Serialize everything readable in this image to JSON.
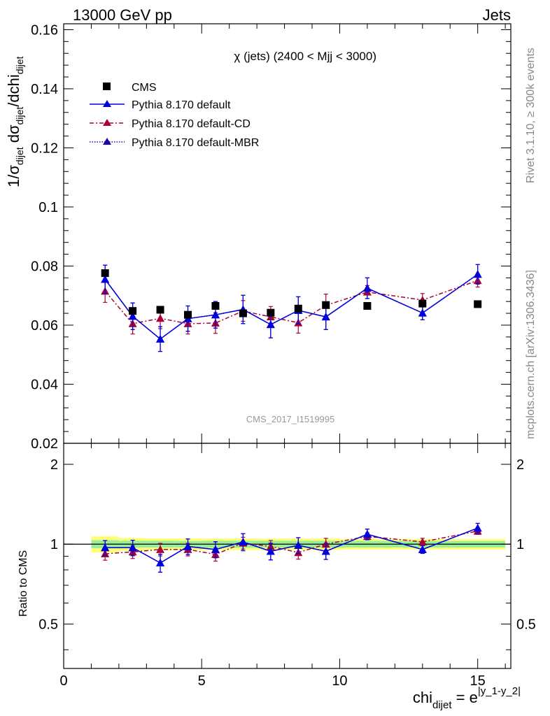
{
  "header": {
    "left_title": "13000 GeV pp",
    "right_title": "Jets"
  },
  "side_labels": {
    "rivet": "Rivet 3.1.10, ≥ 300k events",
    "mcplots": "mcplots.cern.ch [arXiv:1306.3436]"
  },
  "colors": {
    "cms": "#000000",
    "default": "#0000dd",
    "cd": "#aa0033",
    "mbr": "#2200aa",
    "band_green": "#99ee99",
    "band_yellow": "#ffff77"
  },
  "chart_data": [
    {
      "type": "scatter",
      "title": "χ (jets) (2400 < Mjj < 3000)",
      "watermark": "CMS_2017_I1519995",
      "ylabel": "1/σ_dijet dσ_dijet/dchi_dijet",
      "xlim": [
        0,
        16.2
      ],
      "ylim": [
        0.02,
        0.162
      ],
      "yticks": [
        {
          "v": 0.02,
          "label": "0.02"
        },
        {
          "v": 0.04,
          "label": "0.04"
        },
        {
          "v": 0.06,
          "label": "0.06"
        },
        {
          "v": 0.08,
          "label": "0.08"
        },
        {
          "v": 0.1,
          "label": "0.1"
        },
        {
          "v": 0.12,
          "label": "0.12"
        },
        {
          "v": 0.14,
          "label": "0.14"
        },
        {
          "v": 0.16,
          "label": "0.16"
        }
      ],
      "legend": [
        {
          "label": "CMS",
          "key": "cms"
        },
        {
          "label": "Pythia 8.170 default",
          "key": "default"
        },
        {
          "label": "Pythia 8.170 default-CD",
          "key": "cd"
        },
        {
          "label": "Pythia 8.170 default-MBR",
          "key": "mbr"
        }
      ],
      "x": [
        1.5,
        2.5,
        3.5,
        4.5,
        5.5,
        6.5,
        7.5,
        8.5,
        9.5,
        11,
        13,
        15
      ],
      "series": [
        {
          "name": "CMS",
          "key": "cms",
          "y": [
            0.0776,
            0.0648,
            0.0652,
            0.0635,
            0.0665,
            0.064,
            0.0642,
            0.0656,
            0.0668,
            0.0665,
            0.0673,
            0.0671
          ],
          "err": [
            0,
            0,
            0,
            0,
            0,
            0,
            0,
            0,
            0,
            0,
            0,
            0
          ]
        },
        {
          "name": "Pythia 8.170 default",
          "key": "default",
          "y": [
            0.0755,
            0.063,
            0.0553,
            0.0622,
            0.0635,
            0.0653,
            0.0602,
            0.065,
            0.0628,
            0.0725,
            0.0641,
            0.0772
          ],
          "err": [
            0.0048,
            0.0045,
            0.0042,
            0.0043,
            0.0045,
            0.0048,
            0.0045,
            0.0046,
            0.0043,
            0.0035,
            0.0023,
            0.0033
          ]
        },
        {
          "name": "Pythia 8.170 default-CD",
          "key": "cd",
          "y": [
            0.0715,
            0.0605,
            0.0623,
            0.0605,
            0.0607,
            0.0648,
            0.0628,
            0.0608,
            0.0667,
            0.0712,
            0.0685,
            0.0751
          ],
          "err": [
            0.0038,
            0.0035,
            0.0035,
            0.0035,
            0.0035,
            0.0035,
            0.0035,
            0.0035,
            0.0038,
            0.0022,
            0.0022,
            0.0022
          ]
        },
        {
          "name": "Pythia 8.170 default-MBR",
          "key": "mbr",
          "y": [
            0.0755,
            0.063,
            0.0553,
            0.0622,
            0.0635,
            0.0653,
            0.0602,
            0.065,
            0.0628,
            0.0725,
            0.0641,
            0.0772
          ],
          "err": [
            0.0048,
            0.0045,
            0.0042,
            0.0043,
            0.0045,
            0.0048,
            0.0045,
            0.0046,
            0.0043,
            0.0035,
            0.0023,
            0.0033
          ]
        }
      ]
    },
    {
      "type": "scatter",
      "ylabel": "Ratio to CMS",
      "xlabel": "chi_dijet = e^|y_1-y_2|",
      "xlim": [
        0,
        16.2
      ],
      "ylim": [
        0.34,
        2.4
      ],
      "log_y": true,
      "xticks": [
        {
          "v": 0,
          "label": "0"
        },
        {
          "v": 5,
          "label": "5"
        },
        {
          "v": 10,
          "label": "10"
        },
        {
          "v": 15,
          "label": "15"
        }
      ],
      "yticks": [
        {
          "v": 0.5,
          "label": "0.5"
        },
        {
          "v": 1,
          "label": "1"
        },
        {
          "v": 2,
          "label": "2"
        }
      ],
      "bands": {
        "bins": [
          [
            1,
            2
          ],
          [
            2,
            3
          ],
          [
            3,
            4
          ],
          [
            4,
            5
          ],
          [
            5,
            6
          ],
          [
            6,
            7
          ],
          [
            7,
            8
          ],
          [
            8,
            9
          ],
          [
            9,
            10
          ],
          [
            10,
            12
          ],
          [
            12,
            14
          ],
          [
            14,
            16
          ]
        ],
        "stat": [
          0.035,
          0.03,
          0.03,
          0.028,
          0.03,
          0.03,
          0.03,
          0.03,
          0.03,
          0.028,
          0.028,
          0.028
        ],
        "total": [
          0.07,
          0.055,
          0.05,
          0.05,
          0.05,
          0.05,
          0.05,
          0.05,
          0.05,
          0.045,
          0.045,
          0.045
        ]
      },
      "x": [
        1.5,
        2.5,
        3.5,
        4.5,
        5.5,
        6.5,
        7.5,
        8.5,
        9.5,
        11,
        13,
        15
      ],
      "series": [
        {
          "name": "Pythia 8.170 default",
          "key": "default",
          "y": [
            0.97,
            0.97,
            0.85,
            0.98,
            0.955,
            1.02,
            0.94,
            0.99,
            0.94,
            1.09,
            0.955,
            1.15
          ],
          "err": [
            0.062,
            0.065,
            0.066,
            0.066,
            0.066,
            0.075,
            0.068,
            0.068,
            0.064,
            0.05,
            0.032,
            0.048
          ]
        },
        {
          "name": "Pythia 8.170 default-CD",
          "key": "cd",
          "y": [
            0.92,
            0.935,
            0.955,
            0.955,
            0.915,
            1.01,
            0.98,
            0.93,
            1.0,
            1.07,
            1.02,
            1.12
          ],
          "err": [
            0.05,
            0.052,
            0.052,
            0.052,
            0.052,
            0.052,
            0.052,
            0.052,
            0.052,
            0.032,
            0.032,
            0.032
          ]
        },
        {
          "name": "Pythia 8.170 default-MBR",
          "key": "mbr",
          "y": [
            0.97,
            0.97,
            0.85,
            0.98,
            0.955,
            1.02,
            0.94,
            0.99,
            0.94,
            1.09,
            0.955,
            1.15
          ],
          "err": [
            0.062,
            0.065,
            0.066,
            0.066,
            0.066,
            0.075,
            0.068,
            0.068,
            0.064,
            0.05,
            0.032,
            0.048
          ]
        }
      ]
    }
  ]
}
